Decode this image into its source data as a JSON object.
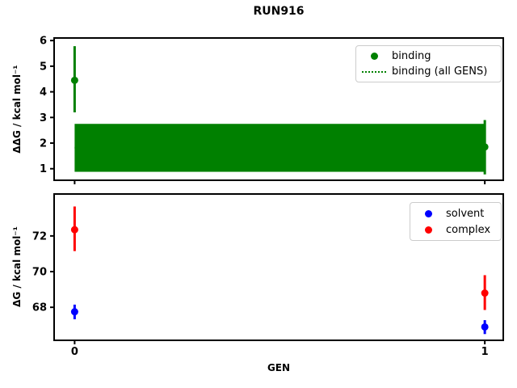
{
  "title": "RUN916",
  "colors": {
    "binding": "#008000",
    "solvent": "#0000ff",
    "complex": "#ff0000",
    "axis": "#000000",
    "legend_border": "#cccccc"
  },
  "chart_data": [
    {
      "type": "scatter",
      "ylabel": "ΔΔG / kcal mol⁻¹",
      "xlabel": "",
      "ylim": [
        0.55,
        6.1
      ],
      "xlim": [
        -0.05,
        1.045
      ],
      "yticks": [
        1,
        2,
        3,
        4,
        5,
        6
      ],
      "xticks": [
        0,
        1
      ],
      "show_xtick_labels": false,
      "grid": false,
      "legend_position": "upper right",
      "legend": [
        {
          "label": "binding",
          "type": "marker",
          "color": "#008000"
        },
        {
          "label": "binding (all GENS)",
          "type": "dotted-line",
          "color": "#008000"
        }
      ],
      "series": [
        {
          "name": "binding",
          "color": "#008000",
          "points": [
            {
              "x": 0,
              "y": 4.45,
              "err_lo": 3.2,
              "err_hi": 5.78
            },
            {
              "x": 1,
              "y": 1.85,
              "err_lo": 0.78,
              "err_hi": 2.9
            }
          ]
        }
      ],
      "band": {
        "name": "binding (all GENS)",
        "color": "#008000",
        "x_range": [
          0,
          1
        ],
        "y_low": 0.88,
        "y_high": 2.75,
        "mean": 1.82
      }
    },
    {
      "type": "scatter",
      "ylabel": "ΔG / kcal mol⁻¹",
      "xlabel": "GEN",
      "ylim": [
        66.15,
        74.35
      ],
      "xlim": [
        -0.05,
        1.045
      ],
      "yticks": [
        68,
        70,
        72
      ],
      "xticks": [
        0,
        1
      ],
      "show_xtick_labels": true,
      "grid": false,
      "legend_position": "upper right",
      "legend": [
        {
          "label": "solvent",
          "type": "marker",
          "color": "#0000ff"
        },
        {
          "label": "complex",
          "type": "marker",
          "color": "#ff0000"
        }
      ],
      "series": [
        {
          "name": "solvent",
          "color": "#0000ff",
          "points": [
            {
              "x": 0,
              "y": 67.75,
              "err_lo": 67.33,
              "err_hi": 68.15
            },
            {
              "x": 1,
              "y": 66.9,
              "err_lo": 66.5,
              "err_hi": 67.28
            }
          ]
        },
        {
          "name": "complex",
          "color": "#ff0000",
          "points": [
            {
              "x": 0,
              "y": 72.35,
              "err_lo": 71.15,
              "err_hi": 73.65
            },
            {
              "x": 1,
              "y": 68.8,
              "err_lo": 67.85,
              "err_hi": 69.8
            }
          ]
        }
      ]
    }
  ]
}
